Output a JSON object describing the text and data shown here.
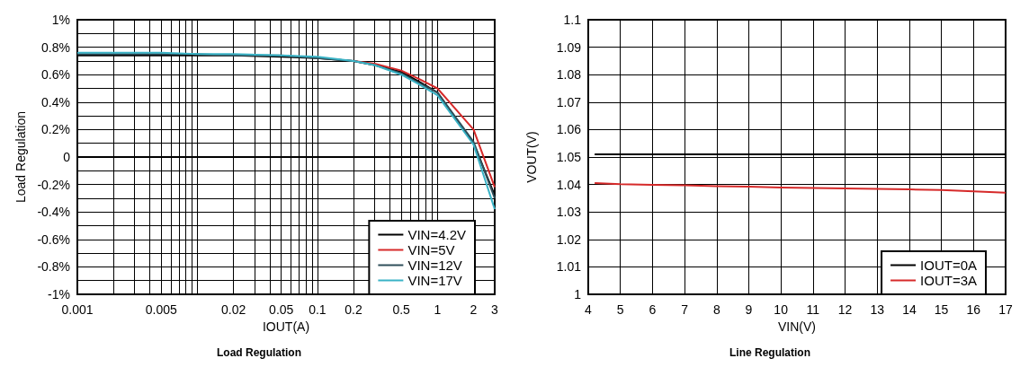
{
  "chart_data": [
    {
      "type": "line",
      "title": "Load Regulation",
      "xlabel": "IOUT(A)",
      "ylabel": "Load Regulation",
      "log": "x",
      "grid": true,
      "legend": "bottom right",
      "line_style": "solid",
      "marker": "none",
      "xlim": [
        0.001,
        3
      ],
      "xticks": [
        0.001,
        {
          "value": 0.002,
          "label": null
        },
        {
          "value": 0.003,
          "label": null
        },
        {
          "value": 0.004,
          "label": null
        },
        0.005,
        {
          "value": 0.006,
          "label": null
        },
        {
          "value": 0.007,
          "label": null
        },
        {
          "value": 0.008,
          "label": null
        },
        {
          "value": 0.009,
          "label": null
        },
        {
          "value": 0.01,
          "label": null
        },
        0.02,
        {
          "value": 0.03,
          "label": null
        },
        {
          "value": 0.04,
          "label": null
        },
        0.05,
        {
          "value": 0.06,
          "label": null
        },
        {
          "value": 0.07,
          "label": null
        },
        {
          "value": 0.08,
          "label": null
        },
        {
          "value": 0.09,
          "label": null
        },
        0.1,
        0.2,
        {
          "value": 0.3,
          "label": null
        },
        {
          "value": 0.4,
          "label": null
        },
        0.5,
        {
          "value": 0.6,
          "label": null
        },
        {
          "value": 0.7,
          "label": null
        },
        {
          "value": 0.8,
          "label": null
        },
        {
          "value": 0.9,
          "label": null
        },
        1,
        2,
        3
      ],
      "ylim": [
        -1,
        1
      ],
      "yticks": [
        {
          "value": -1,
          "label": "-1%"
        },
        {
          "value": -0.9,
          "label": null
        },
        {
          "value": -0.8,
          "label": "-0.8%"
        },
        {
          "value": -0.7,
          "label": null
        },
        {
          "value": -0.6,
          "label": "-0.6%"
        },
        {
          "value": -0.5,
          "label": null
        },
        {
          "value": -0.4,
          "label": "-0.4%"
        },
        {
          "value": -0.3,
          "label": null
        },
        {
          "value": -0.2,
          "label": "-0.2%"
        },
        {
          "value": -0.1,
          "label": null
        },
        0,
        {
          "value": 0.1,
          "label": null
        },
        {
          "value": 0.2,
          "label": "0.2%"
        },
        {
          "value": 0.3,
          "label": null
        },
        {
          "value": 0.4,
          "label": "0.4%"
        },
        {
          "value": 0.5,
          "label": null
        },
        {
          "value": 0.6,
          "label": "0.6%"
        },
        {
          "value": 0.7,
          "label": null
        },
        {
          "value": 0.8,
          "label": "0.8%"
        },
        {
          "value": 0.9,
          "label": null
        },
        {
          "value": 1,
          "label": "1%"
        }
      ],
      "x": [
        0.001,
        0.002,
        0.005,
        0.01,
        0.02,
        0.05,
        0.1,
        0.2,
        0.3,
        0.5,
        0.7,
        1,
        2,
        3
      ],
      "series": [
        {
          "name": "VIN=4.2V",
          "color": "#000000",
          "values": [
            0.74,
            0.74,
            0.74,
            0.74,
            0.74,
            0.73,
            0.72,
            0.7,
            0.67,
            0.62,
            0.55,
            0.47,
            0.1,
            -0.28
          ]
        },
        {
          "name": "VIN=5V",
          "color": "#d62a2a",
          "values": [
            null,
            null,
            null,
            null,
            null,
            null,
            null,
            0.7,
            0.68,
            0.63,
            0.57,
            0.5,
            0.2,
            -0.22
          ]
        },
        {
          "name": "VIN=12V",
          "color": "#2f4f5a",
          "values": [
            0.75,
            0.75,
            0.75,
            0.75,
            0.74,
            0.74,
            0.72,
            0.7,
            0.67,
            0.61,
            0.54,
            0.47,
            0.11,
            -0.3
          ]
        },
        {
          "name": "VIN=17V",
          "color": "#3ab3c6",
          "values": [
            0.76,
            0.76,
            0.76,
            0.75,
            0.75,
            0.74,
            0.73,
            0.7,
            0.67,
            0.6,
            0.53,
            0.45,
            0.09,
            -0.38
          ]
        }
      ]
    },
    {
      "type": "line",
      "title": "Line Regulation",
      "xlabel": "VIN(V)",
      "ylabel": "VOUT(V)",
      "grid": true,
      "legend": "bottom right",
      "line_style": "solid",
      "marker": "none",
      "xlim": [
        4,
        17
      ],
      "xticks": [
        4,
        5,
        6,
        7,
        8,
        9,
        10,
        11,
        12,
        13,
        14,
        15,
        16,
        17
      ],
      "ylim": [
        1,
        1.1
      ],
      "yticks": [
        1,
        1.01,
        1.02,
        1.03,
        1.04,
        1.05,
        1.06,
        1.07,
        1.08,
        1.09,
        1.1
      ],
      "x": [
        4.2,
        5,
        6,
        7,
        8,
        9,
        10,
        11,
        12,
        13,
        14,
        15,
        16,
        17
      ],
      "series": [
        {
          "name": "IOUT=0A",
          "color": "#000000",
          "values": [
            1.051,
            1.051,
            1.051,
            1.051,
            1.051,
            1.051,
            1.051,
            1.051,
            1.051,
            1.051,
            1.051,
            1.051,
            1.051,
            1.051
          ]
        },
        {
          "name": "IOUT=3A",
          "color": "#d62a2a",
          "values": [
            1.0405,
            1.0401,
            1.0399,
            1.0397,
            1.0394,
            1.0392,
            1.0389,
            1.0387,
            1.0386,
            1.0384,
            1.0382,
            1.038,
            1.0375,
            1.037
          ]
        }
      ]
    }
  ]
}
